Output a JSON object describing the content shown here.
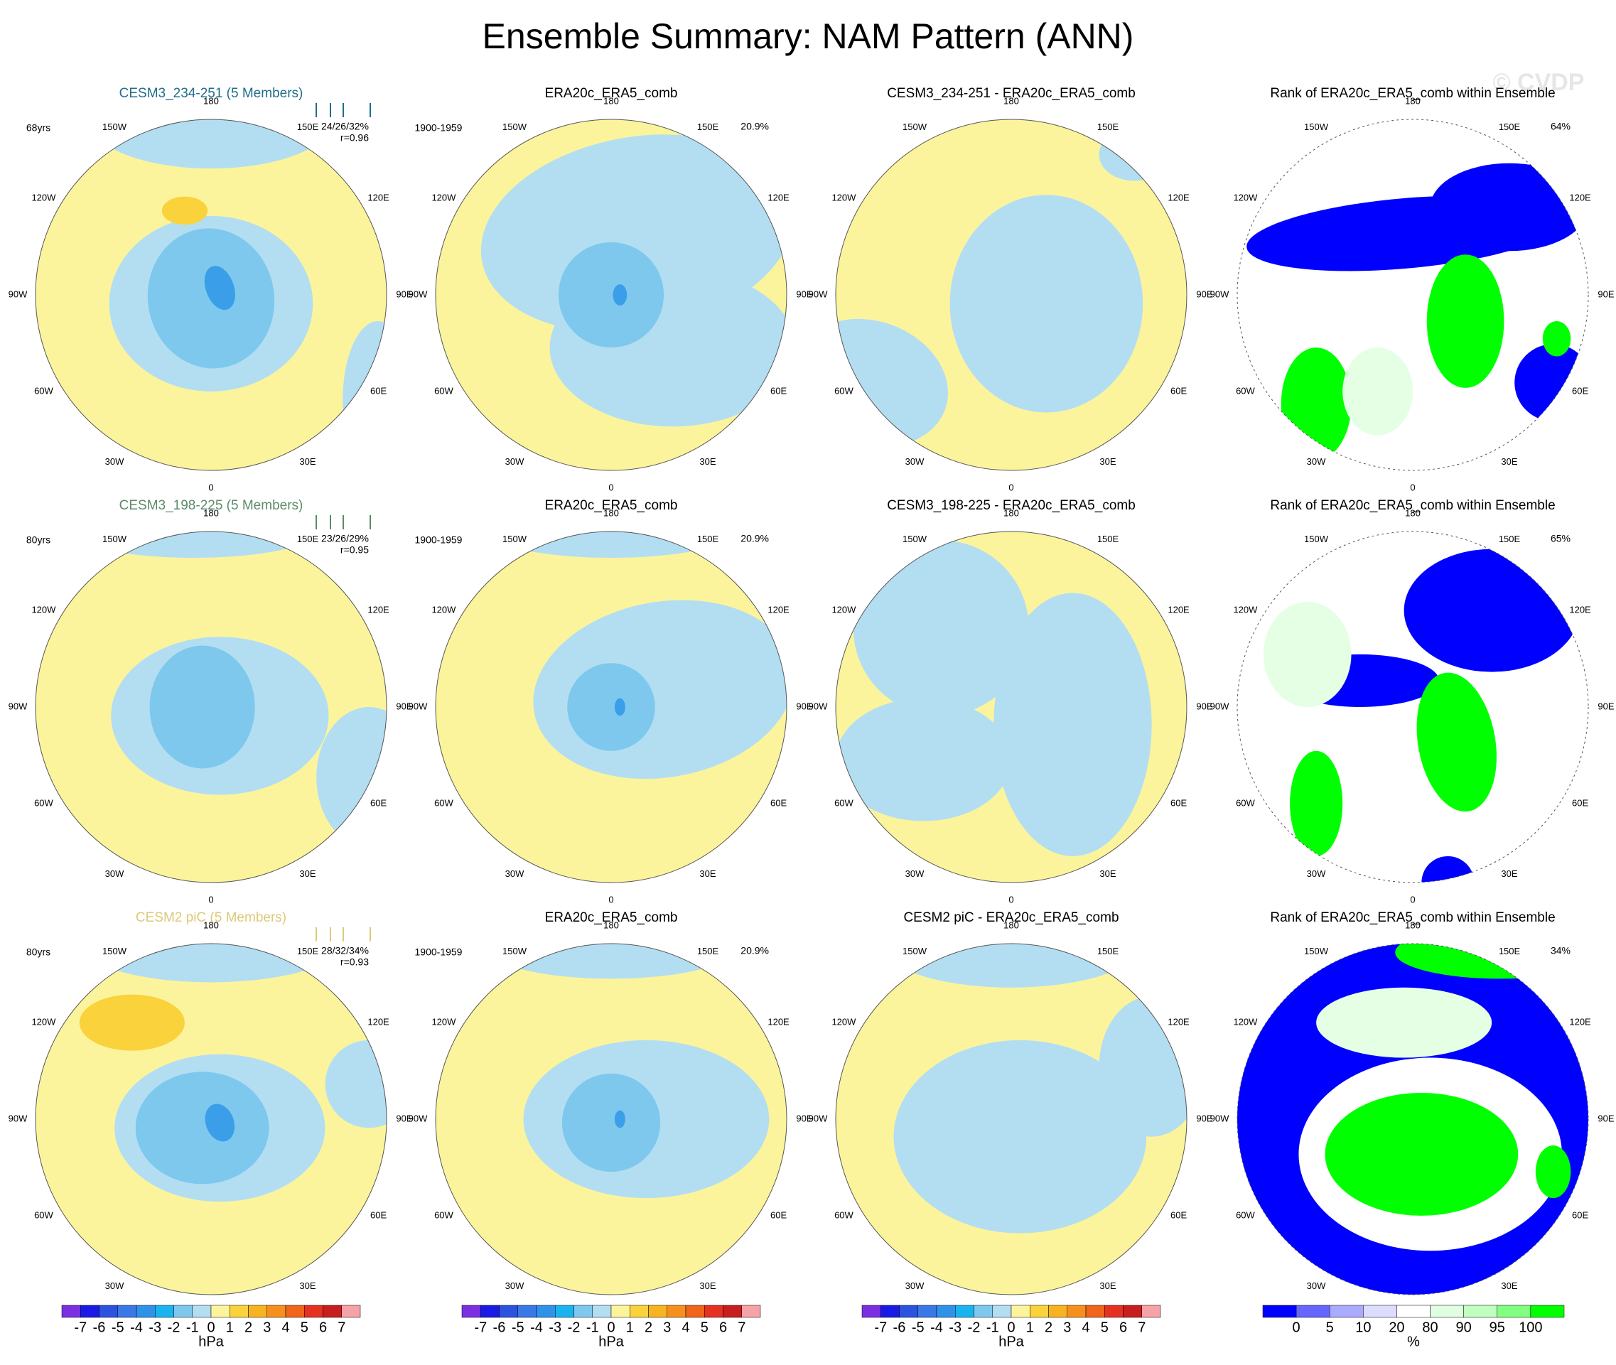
{
  "title": "Ensemble Summary: NAM Pattern (ANN)",
  "watermark": "© CVDP",
  "lon_labels": [
    "0",
    "30E",
    "60E",
    "90E",
    "120E",
    "150E",
    "180",
    "150W",
    "120W",
    "90W",
    "60W",
    "30W"
  ],
  "rows": [
    {
      "panels": [
        {
          "title": "CESM3_234-251 (5 Members)",
          "title_color": "#1f6e8c",
          "left": "68yrs",
          "right": [
            "24/26/32%",
            "r=0.96"
          ]
        },
        {
          "title": "ERA20c_ERA5_comb",
          "left": "1900-1959",
          "right": [
            "20.9%"
          ]
        },
        {
          "title": "CESM3_234-251 - ERA20c_ERA5_comb"
        },
        {
          "title": "Rank of ERA20c_ERA5_comb within Ensemble",
          "right": [
            "64%"
          ]
        }
      ]
    },
    {
      "panels": [
        {
          "title": "CESM3_198-225 (5 Members)",
          "title_color": "#5b8c6a",
          "left": "80yrs",
          "right": [
            "23/26/29%",
            "r=0.95"
          ]
        },
        {
          "title": "ERA20c_ERA5_comb",
          "left": "1900-1959",
          "right": [
            "20.9%"
          ]
        },
        {
          "title": "CESM3_198-225 - ERA20c_ERA5_comb"
        },
        {
          "title": "Rank of ERA20c_ERA5_comb within Ensemble",
          "right": [
            "65%"
          ]
        }
      ]
    },
    {
      "panels": [
        {
          "title": "CESM2 piC (5 Members)",
          "title_color": "#ddc97a",
          "left": "80yrs",
          "right": [
            "28/32/34%",
            "r=0.93"
          ]
        },
        {
          "title": "ERA20c_ERA5_comb",
          "left": "1900-1959",
          "right": [
            "20.9%"
          ]
        },
        {
          "title": "CESM2 piC - ERA20c_ERA5_comb"
        },
        {
          "title": "Rank of ERA20c_ERA5_comb within Ensemble",
          "right": [
            "34%"
          ]
        }
      ]
    }
  ],
  "hpa_bar": {
    "labels": [
      "-7",
      "-6",
      "-5",
      "-4",
      "-3",
      "-2",
      "-1",
      "0",
      "1",
      "2",
      "3",
      "4",
      "5",
      "6",
      "7"
    ],
    "unit": "hPa",
    "colors": [
      "#7b2fe0",
      "#1a1ae6",
      "#2c52e0",
      "#3a78e8",
      "#2e93e8",
      "#19b4f0",
      "#7ec8ee",
      "#b3def2",
      "#fcf49c",
      "#fad23c",
      "#f8b420",
      "#f5901e",
      "#f0641c",
      "#e63020",
      "#c81e1e",
      "#f5a3a8"
    ]
  },
  "rank_bar": {
    "labels": [
      "0",
      "5",
      "10",
      "20",
      "80",
      "90",
      "95",
      "100"
    ],
    "unit": "%",
    "colors": [
      "#0000ff",
      "#6666ff",
      "#aaaaff",
      "#dcdcff",
      "#ffffff",
      "#e0ffe0",
      "#c0ffc0",
      "#80ff80",
      "#00ff00"
    ]
  }
}
